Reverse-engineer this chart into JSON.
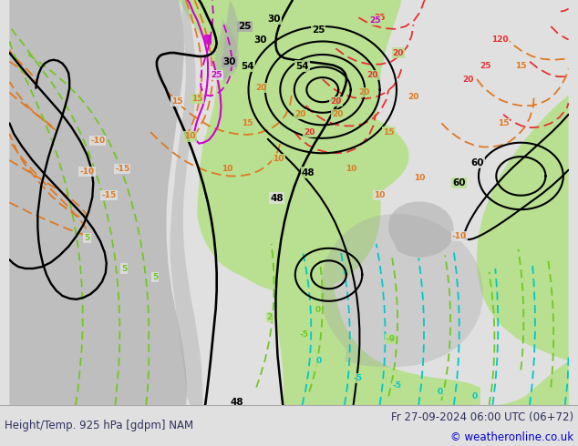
{
  "title_left": "Height/Temp. 925 hPa [gdpm] NAM",
  "title_right": "Fr 27-09-2024 06:00 UTC (06+72)",
  "copyright": "© weatheronline.co.uk",
  "bg_color": "#e0e0e0",
  "land_green_color": "#b8e090",
  "land_gray_color": "#a8a8a8",
  "ocean_color": "#d8d8d8",
  "height_color": "#000000",
  "orange_color": "#e07820",
  "red_color": "#e83030",
  "magenta_color": "#d000d0",
  "lime_color": "#70c820",
  "cyan_color": "#00c8c8",
  "footer_color": "#303060",
  "copyright_color": "#0000cc",
  "footer_font_size": 8.5,
  "title_font_size": 8.5
}
